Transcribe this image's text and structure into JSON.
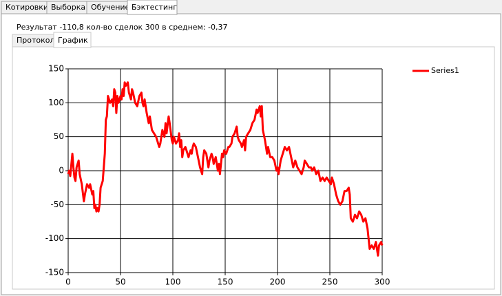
{
  "tabs": [
    "Котировки",
    "Выборка",
    "Обучение",
    "Бэктестинг"
  ],
  "result_text": "Результат -110,8 кол-во сделок 300 в среднем: -0,37",
  "subtabs": [
    "Протокол",
    "График"
  ],
  "chart_data": {
    "type": "line",
    "x": [
      0,
      1,
      2,
      4,
      5,
      6,
      7,
      8,
      10,
      11,
      13,
      15,
      16,
      18,
      20,
      21,
      23,
      24,
      25,
      26,
      27,
      28,
      29,
      30,
      31,
      33,
      34,
      35,
      36,
      37,
      38,
      40,
      42,
      43,
      44,
      45,
      46,
      47,
      48,
      50,
      51,
      52,
      53,
      54,
      55,
      57,
      58,
      60,
      61,
      62,
      64,
      66,
      68,
      70,
      71,
      72,
      73,
      75,
      77,
      78,
      80,
      82,
      84,
      86,
      87,
      88,
      90,
      92,
      93,
      94,
      96,
      97,
      99,
      100,
      101,
      103,
      105,
      106,
      107,
      108,
      109,
      110,
      112,
      114,
      115,
      117,
      118,
      119,
      120,
      122,
      124,
      126,
      127,
      128,
      129,
      130,
      132,
      134,
      135,
      137,
      138,
      139,
      141,
      143,
      144,
      145,
      147,
      148,
      149,
      151,
      153,
      154,
      156,
      157,
      159,
      161,
      162,
      163,
      165,
      166,
      168,
      169,
      170,
      172,
      174,
      176,
      178,
      180,
      181,
      183,
      184,
      185,
      186,
      188,
      190,
      191,
      193,
      195,
      197,
      199,
      200,
      201,
      203,
      205,
      206,
      207,
      209,
      211,
      213,
      215,
      217,
      219,
      221,
      223,
      225,
      226,
      228,
      230,
      232,
      233,
      235,
      237,
      239,
      241,
      243,
      245,
      247,
      249,
      251,
      252,
      253,
      254,
      256,
      258,
      260,
      262,
      264,
      266,
      268,
      269,
      270,
      272,
      274,
      276,
      278,
      280,
      282,
      284,
      286,
      288,
      290,
      292,
      294,
      296,
      297,
      299,
      300
    ],
    "series": [
      {
        "name": "Series1",
        "color": "#ff0000",
        "values": [
          -5,
          0,
          -8,
          25,
          5,
          -10,
          -15,
          5,
          15,
          -5,
          -20,
          -45,
          -35,
          -20,
          -25,
          -20,
          -35,
          -30,
          -55,
          -50,
          -60,
          -55,
          -60,
          -50,
          -25,
          -15,
          5,
          25,
          75,
          80,
          110,
          100,
          105,
          95,
          120,
          115,
          85,
          110,
          100,
          110,
          105,
          120,
          110,
          130,
          125,
          130,
          115,
          105,
          120,
          115,
          100,
          95,
          110,
          115,
          100,
          95,
          105,
          85,
          70,
          80,
          60,
          55,
          50,
          40,
          35,
          40,
          60,
          50,
          70,
          55,
          80,
          70,
          45,
          40,
          50,
          40,
          45,
          55,
          35,
          45,
          20,
          30,
          35,
          25,
          20,
          30,
          25,
          35,
          40,
          35,
          20,
          5,
          0,
          -5,
          20,
          30,
          25,
          5,
          15,
          25,
          20,
          10,
          20,
          0,
          10,
          -5,
          25,
          20,
          30,
          25,
          35,
          35,
          40,
          50,
          55,
          65,
          50,
          45,
          40,
          35,
          45,
          30,
          50,
          55,
          60,
          70,
          75,
          90,
          85,
          95,
          80,
          95,
          60,
          45,
          25,
          35,
          20,
          20,
          15,
          0,
          5,
          -5,
          15,
          25,
          30,
          35,
          30,
          35,
          20,
          5,
          15,
          5,
          0,
          -5,
          5,
          15,
          10,
          5,
          5,
          0,
          5,
          -5,
          0,
          -15,
          -10,
          -15,
          -10,
          -15,
          -20,
          -10,
          -15,
          -20,
          -35,
          -45,
          -50,
          -45,
          -30,
          -30,
          -25,
          -35,
          -70,
          -75,
          -65,
          -70,
          -60,
          -65,
          -75,
          -70,
          -85,
          -115,
          -110,
          -115,
          -105,
          -125,
          -110,
          -105,
          -110
        ]
      }
    ],
    "xlim": [
      0,
      300
    ],
    "xticks": [
      0,
      50,
      100,
      150,
      200,
      250,
      300
    ],
    "ylim": [
      -150,
      150
    ],
    "yticks": [
      -150,
      -100,
      -50,
      0,
      50,
      100,
      150
    ],
    "grid": true,
    "legend": "right"
  }
}
